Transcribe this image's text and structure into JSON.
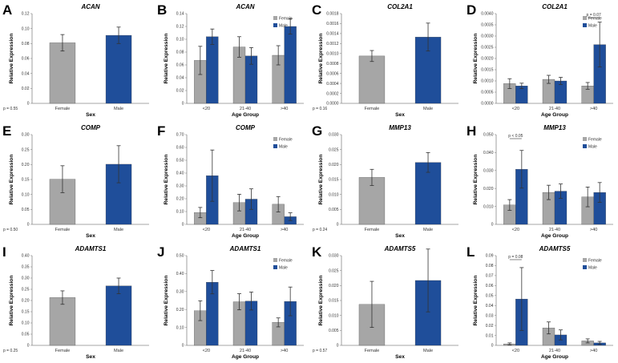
{
  "colors": {
    "female": "#a6a6a6",
    "male": "#1f4e9a",
    "axis": "#888888",
    "error": "#333333"
  },
  "chart_data": [
    {
      "letter": "A",
      "type": "bar",
      "title": "ACAN",
      "ylabel": "Relative Expression",
      "xlabel": "Sex",
      "ylim": [
        0,
        0.12
      ],
      "ticks": [
        "0",
        "0.02",
        "0.04",
        "0.06",
        "0.08",
        "0.10",
        "0.12"
      ],
      "categories": [
        "Female",
        "Male"
      ],
      "values": [
        0.081,
        0.091
      ],
      "errors": [
        0.011,
        0.011
      ],
      "pvalue": "p = 0.55"
    },
    {
      "letter": "B",
      "type": "bar",
      "title": "ACAN",
      "ylabel": "Relative Expression",
      "xlabel": "Age Group",
      "ylim": [
        0,
        0.14
      ],
      "ticks": [
        "0",
        "0.02",
        "0.04",
        "0.06",
        "0.08",
        "0.10",
        "0.12",
        "0.14"
      ],
      "categories": [
        "<20",
        "21-40",
        ">40"
      ],
      "legend": [
        "Female",
        "Male"
      ],
      "series": [
        {
          "name": "Female",
          "values": [
            0.067,
            0.088,
            0.075
          ],
          "errors": [
            0.022,
            0.016,
            0.015
          ]
        },
        {
          "name": "Male",
          "values": [
            0.104,
            0.074,
            0.12
          ],
          "errors": [
            0.012,
            0.013,
            0.012
          ]
        }
      ]
    },
    {
      "letter": "C",
      "type": "bar",
      "title": "COL2A1",
      "ylabel": "Relative Expression",
      "xlabel": "Sex",
      "ylim": [
        0,
        0.0018
      ],
      "ticks": [
        "0.0000",
        "0.0002",
        "0.0004",
        "0.0006",
        "0.0008",
        "0.0010",
        "0.0012",
        "0.0014",
        "0.0016",
        "0.0018"
      ],
      "categories": [
        "Female",
        "Male"
      ],
      "values": [
        0.00095,
        0.00133
      ],
      "errors": [
        0.00011,
        0.00028
      ],
      "pvalue": "p = 0.16"
    },
    {
      "letter": "D",
      "type": "bar",
      "title": "COL2A1",
      "ylabel": "Relative Expression",
      "xlabel": "Age Group",
      "ylim": [
        0,
        0.004
      ],
      "ticks": [
        "0.0000",
        "0.0005",
        "0.0010",
        "0.0015",
        "0.0020",
        "0.0025",
        "0.0030",
        "0.0035",
        "0.0040"
      ],
      "categories": [
        "<20",
        "21-40",
        ">40"
      ],
      "legend": [
        "Female",
        "Male"
      ],
      "series": [
        {
          "name": "Female",
          "values": [
            0.00088,
            0.00107,
            0.00078
          ],
          "errors": [
            0.00022,
            0.00018,
            0.00015
          ]
        },
        {
          "name": "Male",
          "values": [
            0.00078,
            0.001,
            0.00262
          ],
          "errors": [
            0.00012,
            0.00016,
            0.001
          ]
        }
      ],
      "annotation": {
        "text": "p = 0.07",
        "group": 2
      }
    },
    {
      "letter": "E",
      "type": "bar",
      "title": "COMP",
      "ylabel": "Relative Expression",
      "xlabel": "Sex",
      "ylim": [
        0,
        0.3
      ],
      "ticks": [
        "0",
        "0.05",
        "0.10",
        "0.15",
        "0.20",
        "0.25",
        "0.30"
      ],
      "categories": [
        "Female",
        "Male"
      ],
      "values": [
        0.151,
        0.201
      ],
      "errors": [
        0.045,
        0.062
      ],
      "pvalue": "p = 0.50"
    },
    {
      "letter": "F",
      "type": "bar",
      "title": "COMP",
      "ylabel": "Relative Expression",
      "xlabel": "Age Group",
      "ylim": [
        0,
        0.7
      ],
      "ticks": [
        "0",
        "0.10",
        "0.20",
        "0.30",
        "0.40",
        "0.50",
        "0.60",
        "0.70"
      ],
      "categories": [
        "<20",
        "21-40",
        ">40"
      ],
      "legend": [
        "Female",
        "Male"
      ],
      "series": [
        {
          "name": "Female",
          "values": [
            0.092,
            0.17,
            0.157
          ],
          "errors": [
            0.04,
            0.065,
            0.06
          ]
        },
        {
          "name": "Male",
          "values": [
            0.38,
            0.197,
            0.06
          ],
          "errors": [
            0.2,
            0.08,
            0.03
          ]
        }
      ]
    },
    {
      "letter": "G",
      "type": "bar",
      "title": "MMP13",
      "ylabel": "Relative Expression",
      "xlabel": "Sex",
      "ylim": [
        0,
        0.03
      ],
      "ticks": [
        "0",
        "0.005",
        "0.010",
        "0.015",
        "0.020",
        "0.025",
        "0.030"
      ],
      "categories": [
        "Female",
        "Male"
      ],
      "values": [
        0.0157,
        0.0207
      ],
      "errors": [
        0.0027,
        0.0033
      ],
      "pvalue": "p = 0.24"
    },
    {
      "letter": "H",
      "type": "bar",
      "title": "MMP13",
      "ylabel": "Relative Expression",
      "xlabel": "Age Group",
      "ylim": [
        0,
        0.05
      ],
      "ticks": [
        "0",
        "0.010",
        "0.020",
        "0.030",
        "0.040",
        "0.050"
      ],
      "categories": [
        "<20",
        "21-40",
        ">40"
      ],
      "legend": [
        "Female",
        "Male"
      ],
      "series": [
        {
          "name": "Female",
          "values": [
            0.0108,
            0.0178,
            0.0153
          ],
          "errors": [
            0.003,
            0.004,
            0.0055
          ]
        },
        {
          "name": "Male",
          "values": [
            0.0307,
            0.0185,
            0.0178
          ],
          "errors": [
            0.0105,
            0.004,
            0.0055
          ]
        }
      ],
      "annotation": {
        "text": "p < 0.05",
        "group": 0
      }
    },
    {
      "letter": "I",
      "type": "bar",
      "title": "ADAMTS1",
      "ylabel": "Relative Expression",
      "xlabel": "Sex",
      "ylim": [
        0,
        0.4
      ],
      "ticks": [
        "0",
        "0.05",
        "0.10",
        "0.15",
        "0.20",
        "0.25",
        "0.30",
        "0.35",
        "0.40"
      ],
      "categories": [
        "Female",
        "Male"
      ],
      "values": [
        0.213,
        0.265
      ],
      "errors": [
        0.03,
        0.035
      ],
      "pvalue": "p = 0.25"
    },
    {
      "letter": "J",
      "type": "bar",
      "title": "ADAMTS1",
      "ylabel": "Relative Expression",
      "xlabel": "Age Group",
      "ylim": [
        0,
        0.5
      ],
      "ticks": [
        "0",
        "0.10",
        "0.20",
        "0.30",
        "0.40",
        "0.50"
      ],
      "categories": [
        "<20",
        "21-40",
        ">40"
      ],
      "legend": [
        "Female",
        "Male"
      ],
      "series": [
        {
          "name": "Female",
          "values": [
            0.193,
            0.243,
            0.128
          ],
          "errors": [
            0.055,
            0.045,
            0.025
          ]
        },
        {
          "name": "Male",
          "values": [
            0.352,
            0.247,
            0.245
          ],
          "errors": [
            0.065,
            0.05,
            0.08
          ]
        }
      ]
    },
    {
      "letter": "K",
      "type": "bar",
      "title": "ADAMTS5",
      "ylabel": "Relative Expression",
      "xlabel": "Sex",
      "ylim": [
        0,
        0.03
      ],
      "ticks": [
        "0",
        "0.005",
        "0.010",
        "0.015",
        "0.020",
        "0.025",
        "0.030"
      ],
      "categories": [
        "Female",
        "Male"
      ],
      "values": [
        0.0137,
        0.0217
      ],
      "errors": [
        0.0077,
        0.0105
      ],
      "pvalue": "p = 0.57"
    },
    {
      "letter": "L",
      "type": "bar",
      "title": "ADAMTS5",
      "ylabel": "Relative Expression",
      "xlabel": "Age Group",
      "ylim": [
        0,
        0.09
      ],
      "ticks": [
        "0",
        "0.01",
        "0.02",
        "0.03",
        "0.04",
        "0.05",
        "0.06",
        "0.07",
        "0.08",
        "0.09"
      ],
      "categories": [
        "<20",
        "21-40",
        ">40"
      ],
      "legend": [
        "Female",
        "Male"
      ],
      "series": [
        {
          "name": "Female",
          "values": [
            0.0015,
            0.0175,
            0.0045
          ],
          "errors": [
            0.001,
            0.006,
            0.002
          ]
        },
        {
          "name": "Male",
          "values": [
            0.0465,
            0.0105,
            0.0025
          ],
          "errors": [
            0.0315,
            0.005,
            0.0015
          ]
        }
      ],
      "annotation": {
        "text": "p = 0.08",
        "group": 0
      }
    }
  ]
}
